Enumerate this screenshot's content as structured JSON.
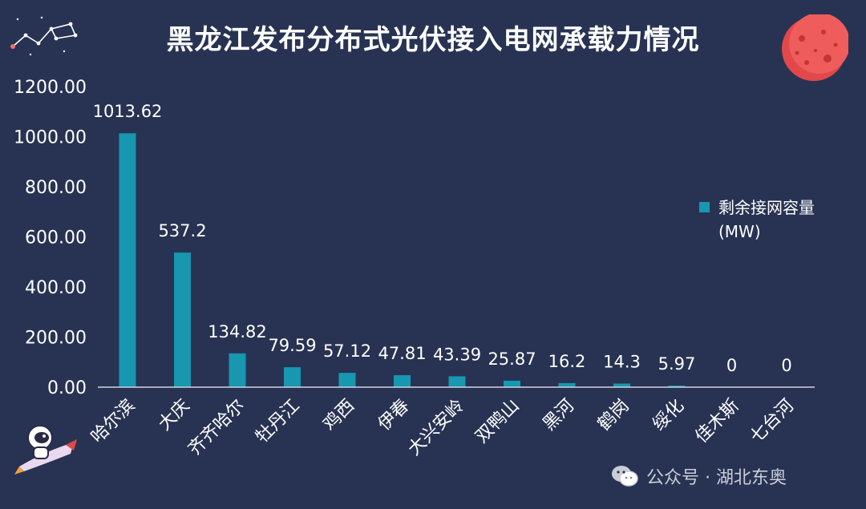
{
  "title": "黑龙江发布分布式光伏接入电网承载力情况",
  "legend": {
    "label": "剩余接网容量(MW)",
    "color": "#1797b0"
  },
  "watermark": {
    "text": "公众号 · 湖北东奥"
  },
  "colors": {
    "background": "#283353",
    "bar": "#1797b0",
    "axis_text": "#ffffff",
    "axis_line": "#d0d4de"
  },
  "icons": [
    "constellation-icon",
    "planet-icon",
    "astronaut-rocket-icon",
    "wechat-icon"
  ],
  "chart_data": {
    "type": "bar",
    "title": "黑龙江发布分布式光伏接入电网承载力情况",
    "categories": [
      "哈尔滨",
      "大庆",
      "齐齐哈尔",
      "牡丹江",
      "鸡西",
      "伊春",
      "大兴安岭",
      "双鸭山",
      "黑河",
      "鹤岗",
      "绥化",
      "佳木斯",
      "七台河"
    ],
    "series": [
      {
        "name": "剩余接网容量(MW)",
        "values": [
          1013.62,
          537.2,
          134.82,
          79.59,
          57.12,
          47.81,
          43.39,
          25.87,
          16.2,
          14.3,
          5.97,
          0,
          0
        ],
        "data_labels": [
          "1013.62",
          "537.2",
          "134.82",
          "79.59",
          "57.12",
          "47.81",
          "43.39",
          "25.87",
          "16.2",
          "14.3",
          "5.97",
          "0",
          "0"
        ]
      }
    ],
    "yticks": [
      "0.00",
      "200.00",
      "400.00",
      "600.00",
      "800.00",
      "1000.00",
      "1200.00"
    ],
    "ylim": [
      0,
      1200
    ],
    "grid": false,
    "legend_position": "right"
  }
}
